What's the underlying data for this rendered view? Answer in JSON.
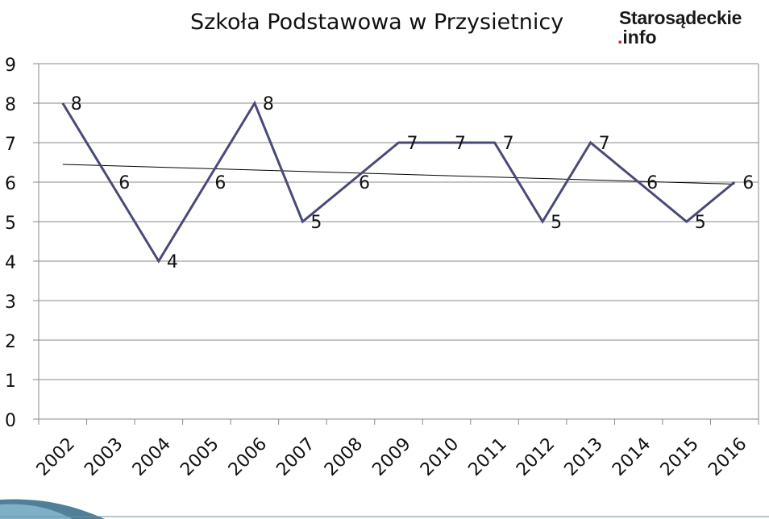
{
  "chart_data": {
    "type": "line",
    "title": "Szkoła Podstawowa w Przysietnicy",
    "categories": [
      "2002",
      "2003",
      "2004",
      "2005",
      "2006",
      "2007",
      "2008",
      "2009",
      "2010",
      "2011",
      "2012",
      "2013",
      "2014",
      "2015",
      "2016"
    ],
    "series": [
      {
        "values": [
          8,
          6,
          4,
          6,
          8,
          5,
          6,
          7,
          7,
          7,
          5,
          7,
          6,
          5,
          6
        ],
        "color": "#4a4a78"
      }
    ],
    "trendline": {
      "start": 6.45,
      "end": 5.95,
      "color": "#000000"
    },
    "ylim": [
      0,
      9
    ],
    "yticks": [
      "0",
      "1",
      "2",
      "3",
      "4",
      "5",
      "6",
      "7",
      "8",
      "9"
    ],
    "grid": true,
    "xlabel": "",
    "ylabel": ""
  },
  "logo": {
    "line1": "Starosądeckie",
    "dot": ".",
    "line2": "info",
    "dot_color": "#e31b1b"
  }
}
